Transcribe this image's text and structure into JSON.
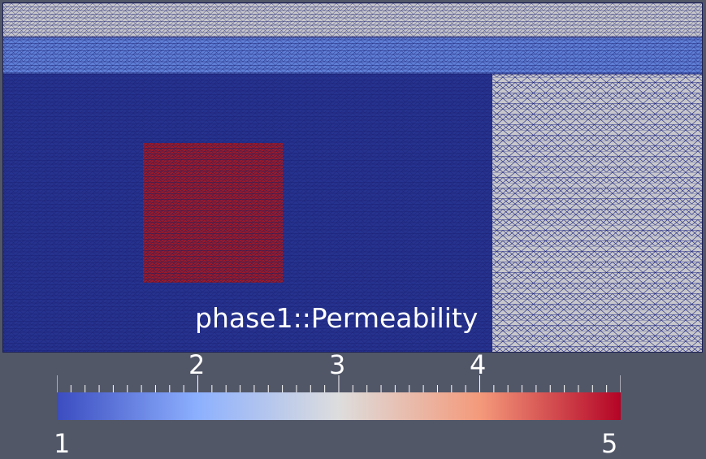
{
  "viewport": {
    "background": "#525768",
    "field_title": "phase1::Permeability"
  },
  "colorbar": {
    "min_label": "1",
    "max_label": "5",
    "tick_labels": [
      "2",
      "3",
      "4"
    ],
    "range": [
      1,
      5
    ],
    "colormap": [
      "#3b4cc0",
      "#8db0fe",
      "#dddddd",
      "#f49a7b",
      "#b40426"
    ]
  },
  "regions": [
    {
      "name": "top-band",
      "value": 3.0,
      "color": "#c8c8cc"
    },
    {
      "name": "second-band",
      "value": 1.8,
      "color": "#5f7fd6"
    },
    {
      "name": "main-domain",
      "value": 1.0,
      "color": "#26338f"
    },
    {
      "name": "right-domain",
      "value": 3.0,
      "color": "#c8c8cc"
    },
    {
      "name": "inclusion-square",
      "value": 5.0,
      "color": "#9c1a2a"
    }
  ],
  "mesh_edge_color": "#1a1f70"
}
